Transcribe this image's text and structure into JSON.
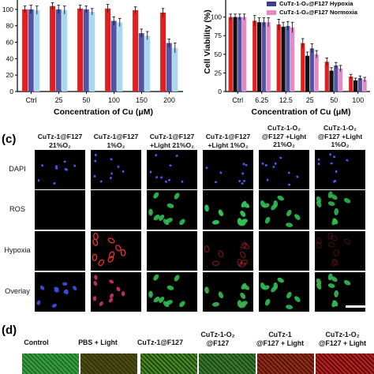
{
  "chart_data": [
    {
      "type": "bar",
      "panel": "a",
      "categories": [
        "Ctrl",
        "25",
        "50",
        "100",
        "150",
        "200"
      ],
      "xlabel": "Concentration of Cu (μM)",
      "ylabel": "",
      "ylim": [
        0,
        120
      ],
      "yticks": [
        0,
        20,
        40,
        60,
        80,
        100,
        120
      ],
      "ytick_labels_shown": [
        "0",
        "20",
        "40",
        "60",
        "80",
        "100"
      ],
      "series": [
        {
          "color": "#e11f1f",
          "values": [
            100,
            104,
            101,
            101,
            99,
            96
          ],
          "errors": [
            4,
            4,
            4,
            5,
            4,
            5
          ]
        },
        {
          "color": "#5354a6",
          "values": [
            100,
            100,
            100,
            86,
            71,
            59
          ],
          "errors": [
            5,
            5,
            4,
            5,
            5,
            5
          ]
        },
        {
          "color": "#a9d7ee",
          "values": [
            99,
            99,
            97,
            84,
            68,
            53
          ],
          "errors": [
            5,
            5,
            4,
            5,
            5,
            6
          ]
        }
      ]
    },
    {
      "type": "bar",
      "panel": "b",
      "categories": [
        "Ctrl",
        "6.25",
        "12.5",
        "25",
        "50",
        "100"
      ],
      "xlabel": "Concentration of Cu (μM)",
      "ylabel": "Cell Viability (%)",
      "ylim": [
        0,
        125
      ],
      "yticks": [
        0,
        25,
        50,
        75,
        100,
        125
      ],
      "legend": [
        "CuTz-1-O₂@F127 Hypoxia",
        "CuTz-1-O₂@F127 Normoxia"
      ],
      "series": [
        {
          "color": "#e11f1f",
          "values": [
            100,
            95,
            90,
            65,
            40,
            20
          ],
          "errors": [
            4,
            7,
            7,
            6,
            5,
            3
          ]
        },
        {
          "color": "#111111",
          "values": [
            100,
            93,
            87,
            48,
            28,
            15
          ],
          "errors": [
            4,
            6,
            6,
            5,
            4,
            3
          ]
        },
        {
          "color": "#5354a6",
          "values": [
            100,
            93,
            88,
            58,
            35,
            18
          ],
          "errors": [
            4,
            6,
            6,
            6,
            4,
            3
          ]
        },
        {
          "color": "#e589c4",
          "values": [
            100,
            93,
            86,
            50,
            31,
            16
          ],
          "errors": [
            4,
            6,
            7,
            5,
            4,
            3
          ]
        }
      ]
    }
  ],
  "panel_c": {
    "letter": "(c)",
    "columns": [
      [
        "CuTz-1@F127",
        "21%O₂"
      ],
      [
        "CuTz-1@F127",
        "1%O₂"
      ],
      [
        "CuTz-1@F127",
        "+Light  21%O₂"
      ],
      [
        "CuTz-1@F127",
        "+Light  1%O₂"
      ],
      [
        "CuTz-1-O₂",
        "@F127 +Light",
        "21%O₂"
      ],
      [
        "CuTz-1-O₂",
        "@F127 +Light",
        "1%O₂"
      ]
    ],
    "rows": [
      "DAPI",
      "ROS",
      "Hypoxia",
      "Overlay"
    ]
  },
  "panel_d": {
    "letter": "(d)",
    "labels": [
      [
        "Control"
      ],
      [
        "PBS + Light"
      ],
      [
        "CuTz-1@F127"
      ],
      [
        "CuTz-1-O₂",
        "@F127"
      ],
      [
        "CuTz-1",
        "@F127 + Light"
      ],
      [
        "CuTz-1-O₂",
        "@F127 + Light"
      ]
    ]
  }
}
